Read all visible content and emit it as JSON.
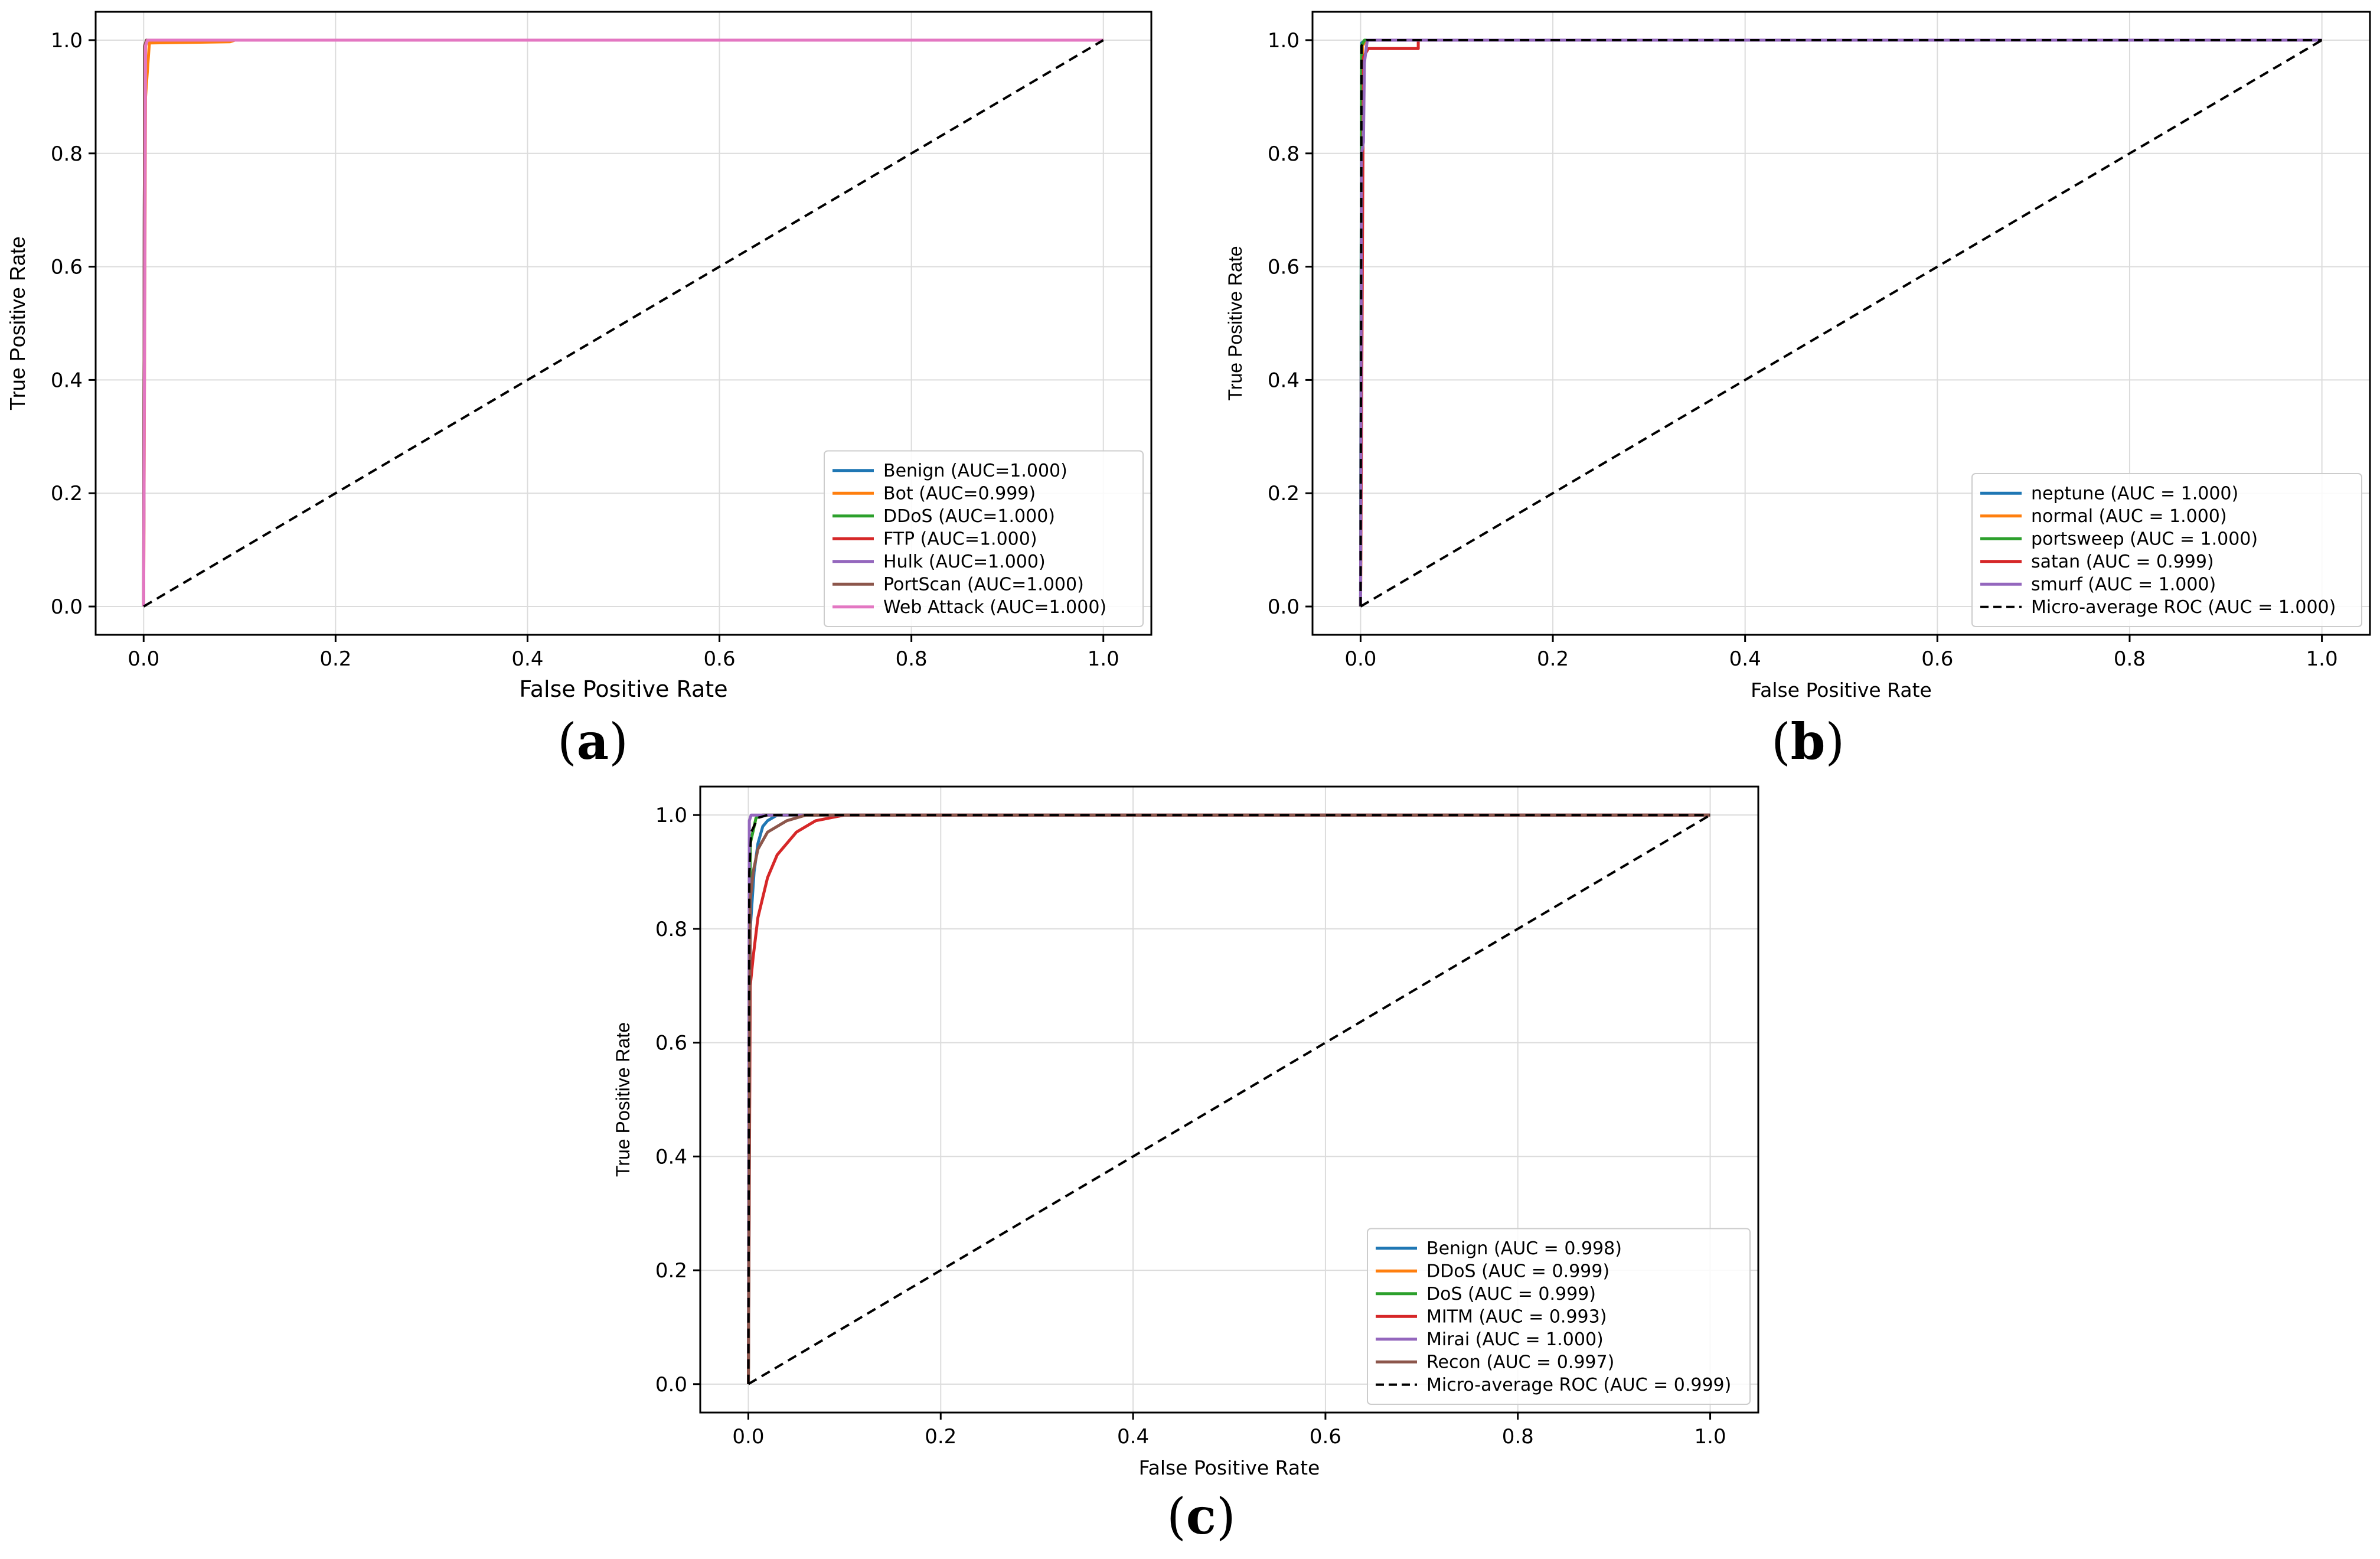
{
  "figure": {
    "captions": [
      "a",
      "b",
      "c"
    ]
  },
  "chart_data": [
    {
      "type": "line",
      "panel": "a",
      "title": "",
      "xlabel": "False Positive Rate",
      "ylabel": "True Positive Rate",
      "xlim": [
        -0.05,
        1.05
      ],
      "ylim": [
        -0.05,
        1.05
      ],
      "xticks": [
        "0.0",
        "0.2",
        "0.4",
        "0.6",
        "0.8",
        "1.0"
      ],
      "yticks": [
        "0.0",
        "0.2",
        "0.4",
        "0.6",
        "0.8",
        "1.0"
      ],
      "grid": true,
      "legend_position": "lower right",
      "series": [
        {
          "name": "Benign (AUC=1.000)",
          "color": "#1f77b4",
          "style": "solid",
          "points": [
            [
              0,
              0
            ],
            [
              0.001,
              0.99
            ],
            [
              0.004,
              1.0
            ],
            [
              1.0,
              1.0
            ]
          ]
        },
        {
          "name": "Bot (AUC=0.999)",
          "color": "#ff7f0e",
          "style": "solid",
          "points": [
            [
              0,
              0
            ],
            [
              0.002,
              0.9
            ],
            [
              0.006,
              0.995
            ],
            [
              0.09,
              0.997
            ],
            [
              0.095,
              1.0
            ],
            [
              1.0,
              1.0
            ]
          ]
        },
        {
          "name": "DDoS (AUC=1.000)",
          "color": "#2ca02c",
          "style": "solid",
          "points": [
            [
              0,
              0
            ],
            [
              0.001,
              0.99
            ],
            [
              0.003,
              1.0
            ],
            [
              1.0,
              1.0
            ]
          ]
        },
        {
          "name": "FTP (AUC=1.000)",
          "color": "#d62728",
          "style": "solid",
          "points": [
            [
              0,
              0
            ],
            [
              0.001,
              0.99
            ],
            [
              0.003,
              1.0
            ],
            [
              1.0,
              1.0
            ]
          ]
        },
        {
          "name": "Hulk (AUC=1.000)",
          "color": "#9467bd",
          "style": "solid",
          "points": [
            [
              0,
              0
            ],
            [
              0.001,
              0.99
            ],
            [
              0.003,
              1.0
            ],
            [
              1.0,
              1.0
            ]
          ]
        },
        {
          "name": "PortScan (AUC=1.000)",
          "color": "#8c564b",
          "style": "solid",
          "points": [
            [
              0,
              0
            ],
            [
              0.001,
              0.99
            ],
            [
              0.003,
              1.0
            ],
            [
              1.0,
              1.0
            ]
          ]
        },
        {
          "name": "Web Attack (AUC=1.000)",
          "color": "#e377c2",
          "style": "solid",
          "points": [
            [
              0,
              0
            ],
            [
              0.002,
              0.99
            ],
            [
              0.004,
              1.0
            ],
            [
              1.0,
              1.0
            ]
          ]
        },
        {
          "name": "",
          "color": "#000000",
          "style": "dashed",
          "points": [
            [
              0,
              0
            ],
            [
              1.0,
              1.0
            ]
          ]
        }
      ]
    },
    {
      "type": "line",
      "panel": "b",
      "title": "",
      "xlabel": "False Positive Rate",
      "ylabel": "True Positive Rate",
      "xlim": [
        -0.05,
        1.05
      ],
      "ylim": [
        -0.05,
        1.05
      ],
      "xticks": [
        "0.0",
        "0.2",
        "0.4",
        "0.6",
        "0.8",
        "1.0"
      ],
      "yticks": [
        "0.0",
        "0.2",
        "0.4",
        "0.6",
        "0.8",
        "1.0"
      ],
      "grid": true,
      "legend_position": "lower right",
      "series": [
        {
          "name": "neptune (AUC = 1.000)",
          "color": "#1f77b4",
          "style": "solid",
          "points": [
            [
              0,
              0
            ],
            [
              0.001,
              0.995
            ],
            [
              0.005,
              1.0
            ],
            [
              1.0,
              1.0
            ]
          ]
        },
        {
          "name": "normal (AUC = 1.000)",
          "color": "#ff7f0e",
          "style": "solid",
          "points": [
            [
              0,
              0
            ],
            [
              0.002,
              0.99
            ],
            [
              0.006,
              1.0
            ],
            [
              1.0,
              1.0
            ]
          ]
        },
        {
          "name": "portsweep (AUC = 1.000)",
          "color": "#2ca02c",
          "style": "solid",
          "points": [
            [
              0,
              0
            ],
            [
              0.001,
              0.99
            ],
            [
              0.004,
              1.0
            ],
            [
              1.0,
              1.0
            ]
          ]
        },
        {
          "name": "satan (AUC = 0.999)",
          "color": "#d62728",
          "style": "solid",
          "points": [
            [
              0,
              0
            ],
            [
              0.003,
              0.97
            ],
            [
              0.008,
              0.985
            ],
            [
              0.06,
              0.985
            ],
            [
              0.06,
              1.0
            ],
            [
              1.0,
              1.0
            ]
          ]
        },
        {
          "name": "smurf (AUC = 1.000)",
          "color": "#9467bd",
          "style": "solid",
          "points": [
            [
              0,
              0
            ],
            [
              0.001,
              0.8
            ],
            [
              0.003,
              0.82
            ],
            [
              0.004,
              0.96
            ],
            [
              0.007,
              1.0
            ],
            [
              1.0,
              1.0
            ]
          ]
        },
        {
          "name": "Micro-average ROC (AUC = 1.000)",
          "color": "#000000",
          "style": "dashed",
          "points": [
            [
              0,
              0
            ],
            [
              0.001,
              0.99
            ],
            [
              0.006,
              1.0
            ],
            [
              1.0,
              1.0
            ]
          ]
        },
        {
          "name": "",
          "color": "#000000",
          "style": "dashed",
          "points": [
            [
              0,
              0
            ],
            [
              1.0,
              1.0
            ]
          ]
        }
      ]
    },
    {
      "type": "line",
      "panel": "c",
      "title": "",
      "xlabel": "False Positive Rate",
      "ylabel": "True Positive Rate",
      "xlim": [
        -0.05,
        1.05
      ],
      "ylim": [
        -0.05,
        1.05
      ],
      "xticks": [
        "0.0",
        "0.2",
        "0.4",
        "0.6",
        "0.8",
        "1.0"
      ],
      "yticks": [
        "0.0",
        "0.2",
        "0.4",
        "0.6",
        "0.8",
        "1.0"
      ],
      "grid": true,
      "legend_position": "lower right",
      "series": [
        {
          "name": "Benign (AUC = 0.998)",
          "color": "#1f77b4",
          "style": "solid",
          "points": [
            [
              0,
              0
            ],
            [
              0.002,
              0.8
            ],
            [
              0.006,
              0.9
            ],
            [
              0.01,
              0.95
            ],
            [
              0.015,
              0.98
            ],
            [
              0.02,
              0.99
            ],
            [
              0.03,
              1.0
            ],
            [
              1.0,
              1.0
            ]
          ]
        },
        {
          "name": "DDoS (AUC = 0.999)",
          "color": "#ff7f0e",
          "style": "solid",
          "points": [
            [
              0,
              0
            ],
            [
              0.002,
              0.95
            ],
            [
              0.008,
              0.995
            ],
            [
              0.015,
              1.0
            ],
            [
              1.0,
              1.0
            ]
          ]
        },
        {
          "name": "DoS (AUC = 0.999)",
          "color": "#2ca02c",
          "style": "solid",
          "points": [
            [
              0,
              0
            ],
            [
              0.002,
              0.95
            ],
            [
              0.008,
              0.995
            ],
            [
              0.015,
              1.0
            ],
            [
              1.0,
              1.0
            ]
          ]
        },
        {
          "name": "MITM (AUC = 0.993)",
          "color": "#d62728",
          "style": "solid",
          "points": [
            [
              0,
              0
            ],
            [
              0.002,
              0.7
            ],
            [
              0.005,
              0.75
            ],
            [
              0.01,
              0.82
            ],
            [
              0.02,
              0.89
            ],
            [
              0.03,
              0.93
            ],
            [
              0.05,
              0.97
            ],
            [
              0.07,
              0.99
            ],
            [
              0.1,
              1.0
            ],
            [
              1.0,
              1.0
            ]
          ]
        },
        {
          "name": "Mirai (AUC = 1.000)",
          "color": "#9467bd",
          "style": "solid",
          "points": [
            [
              0,
              0
            ],
            [
              0.001,
              0.99
            ],
            [
              0.003,
              1.0
            ],
            [
              1.0,
              1.0
            ]
          ]
        },
        {
          "name": "Recon (AUC = 0.997)",
          "color": "#8c564b",
          "style": "solid",
          "points": [
            [
              0,
              0
            ],
            [
              0.002,
              0.85
            ],
            [
              0.005,
              0.9
            ],
            [
              0.01,
              0.94
            ],
            [
              0.02,
              0.97
            ],
            [
              0.04,
              0.99
            ],
            [
              0.06,
              1.0
            ],
            [
              1.0,
              1.0
            ]
          ]
        },
        {
          "name": "Micro-average ROC (AUC = 0.999)",
          "color": "#000000",
          "style": "dashed",
          "points": [
            [
              0,
              0
            ],
            [
              0.001,
              0.9
            ],
            [
              0.003,
              0.97
            ],
            [
              0.01,
              0.995
            ],
            [
              0.02,
              1.0
            ],
            [
              1.0,
              1.0
            ]
          ]
        },
        {
          "name": "",
          "color": "#000000",
          "style": "dashed",
          "points": [
            [
              0,
              0
            ],
            [
              1.0,
              1.0
            ]
          ]
        }
      ]
    }
  ]
}
